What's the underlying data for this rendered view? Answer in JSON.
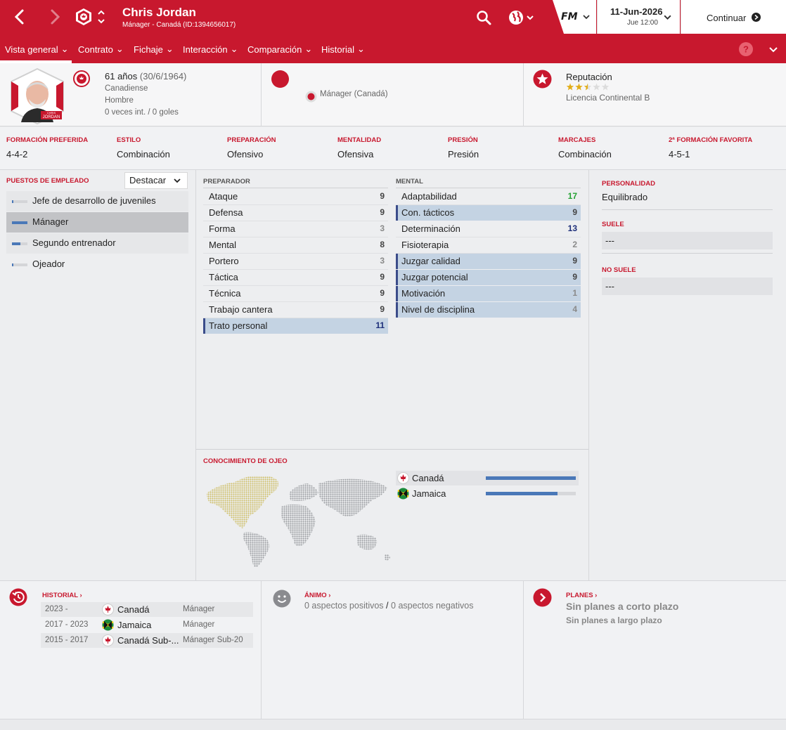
{
  "header": {
    "name": "Chris Jordan",
    "subtitle": "Mánager - Canadá (ID:1394656017)",
    "date": "11-Jun-2026",
    "time": "Jue 12:00",
    "continue_label": "Continuar",
    "fm_logo": "FM",
    "accent_color": "#c8182e"
  },
  "menu": [
    {
      "label": "Vista general"
    },
    {
      "label": "Contrato"
    },
    {
      "label": "Fichaje"
    },
    {
      "label": "Interacción"
    },
    {
      "label": "Comparación"
    },
    {
      "label": "Historial"
    }
  ],
  "profile": {
    "age": "61 años",
    "birth": "(30/6/1964)",
    "nationality": "Canadiense",
    "gender": "Hombre",
    "caps": "0 veces int. / 0 goles",
    "role": "Mánager (Canadá)",
    "reputation_label": "Reputación",
    "reputation_stars": 2.5,
    "reputation_max": 5,
    "license": "Licencia Continental B",
    "portrait_caption_small": "CHRIS",
    "portrait_caption": "JORDAN",
    "crest_text": "CANADA"
  },
  "tactics": [
    {
      "label": "FORMACIÓN PREFERIDA",
      "value": "4-4-2"
    },
    {
      "label": "ESTILO",
      "value": "Combinación"
    },
    {
      "label": "PREPARACIÓN",
      "value": "Ofensivo"
    },
    {
      "label": "MENTALIDAD",
      "value": "Ofensiva"
    },
    {
      "label": "PRESIÓN",
      "value": "Presión"
    },
    {
      "label": "MARCAJES",
      "value": "Combinación"
    },
    {
      "label": "2ª FORMACIÓN FAVORITA",
      "value": "4-5-1"
    }
  ],
  "roles": {
    "title": "PUESTOS DE EMPLEADO",
    "select_value": "Destacar",
    "items": [
      {
        "label": "Jefe de desarrollo de juveniles",
        "level": 0.1
      },
      {
        "label": "Mánager",
        "level": 1.0
      },
      {
        "label": "Segundo entrenador",
        "level": 0.55
      },
      {
        "label": "Ojeador",
        "level": 0.1
      }
    ]
  },
  "coaching": {
    "title": "PREPARADOR",
    "items": [
      {
        "name": "Ataque",
        "value": "9"
      },
      {
        "name": "Defensa",
        "value": "9"
      },
      {
        "name": "Forma",
        "value": "3"
      },
      {
        "name": "Mental",
        "value": "8"
      },
      {
        "name": "Portero",
        "value": "3"
      },
      {
        "name": "Táctica",
        "value": "9"
      },
      {
        "name": "Técnica",
        "value": "9"
      },
      {
        "name": "Trabajo cantera",
        "value": "9"
      },
      {
        "name": "Trato personal",
        "value": "11"
      }
    ]
  },
  "mental": {
    "title": "MENTAL",
    "items": [
      {
        "name": "Adaptabilidad",
        "value": "17"
      },
      {
        "name": "Con. tácticos",
        "value": "9"
      },
      {
        "name": "Determinación",
        "value": "13"
      },
      {
        "name": "Fisioterapia",
        "value": "2"
      },
      {
        "name": "Juzgar calidad",
        "value": "9"
      },
      {
        "name": "Juzgar potencial",
        "value": "9"
      },
      {
        "name": "Motivación",
        "value": "1"
      },
      {
        "name": "Nivel de disciplina",
        "value": "4"
      }
    ]
  },
  "personality": {
    "title": "PERSONALIDAD",
    "value": "Equilibrado",
    "likes_title": "SUELE",
    "likes_value": "---",
    "dislikes_title": "NO SUELE",
    "dislikes_value": "---"
  },
  "knowledge": {
    "title": "CONOCIMIENTO DE OJEO",
    "items": [
      {
        "country": "Canadá",
        "level": 1.0
      },
      {
        "country": "Jamaica",
        "level": 0.8
      }
    ]
  },
  "history": {
    "title": "HISTORIAL",
    "items": [
      {
        "years": "2023 -",
        "club": "Canadá",
        "role": "Mánager"
      },
      {
        "years": "2017 - 2023",
        "club": "Jamaica",
        "role": "Mánager"
      },
      {
        "years": "2015 - 2017",
        "club": "Canadá Sub-...",
        "role": "Mánager Sub-20"
      }
    ]
  },
  "morale": {
    "title": "ÁNIMO",
    "positive": "0 aspectos positivos",
    "separator": "/",
    "negative": "0 aspectos negativos"
  },
  "plans": {
    "title": "PLANES",
    "short_term": "Sin planes a corto plazo",
    "long_term": "Sin planes a largo plazo"
  }
}
